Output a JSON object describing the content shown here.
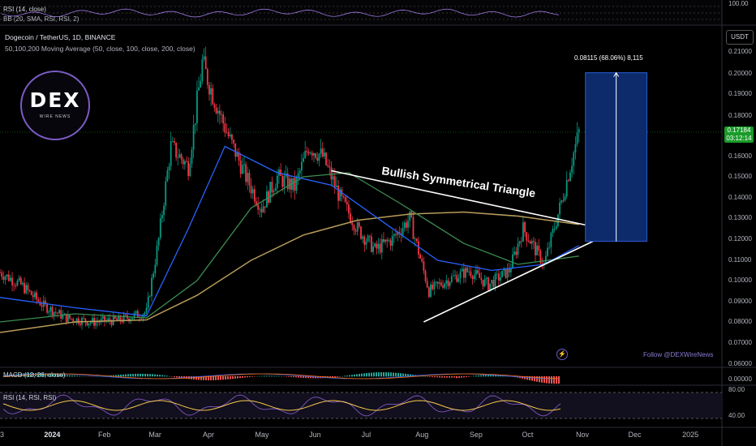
{
  "header": {
    "pair": "Dogecoin / TetherUS, 1D, BINANCE",
    "ma_label": "50,100,200 Moving Average (50, close, 100, close, 200, close)",
    "rsi_top_label": "RSI (14, close)",
    "bb_label": "BB (20, SMA, RSI, RSI, 2)",
    "top_value": "100.00"
  },
  "currency_button": "USDT",
  "logo": {
    "text": "DEX",
    "subtext": "WIRE NEWS"
  },
  "annotation": {
    "pattern_label": "Bullish Symmetrical Triangle",
    "measure_label": "0.08115 (68.06%) 8,115",
    "follow_text": "Follow @DEXWireNews"
  },
  "price_badge": {
    "price": "0.17184",
    "timer": "03:12:14"
  },
  "macd_label": "MACD (12, 26, close)",
  "macd_value": "0.00000",
  "rsi_label": "RSI (14, RSI, RSI)",
  "rsi_ticks": [
    "80.00",
    "40.00"
  ],
  "colors": {
    "up": "#089981",
    "down": "#f23645",
    "ma50": "#2962ff",
    "ma100": "#3c8c50",
    "ma200": "#b89c5a",
    "target_box": "#0d2a6b",
    "rsi_line": "#7e57c2",
    "rsi_ma": "#f5c84b"
  },
  "chart_data": {
    "type": "candlestick",
    "title": "Dogecoin / TetherUS, 1D, BINANCE",
    "y_ticks": [
      "0.21000",
      "0.20000",
      "0.19000",
      "0.18000",
      "0.16000",
      "0.15000",
      "0.14000",
      "0.13000",
      "0.12000",
      "0.11000",
      "0.10000",
      "0.09000",
      "0.08000",
      "0.07000",
      "0.06000"
    ],
    "x_ticks": [
      "3",
      "2024",
      "Feb",
      "Mar",
      "Apr",
      "May",
      "Jun",
      "Jul",
      "Aug",
      "Sep",
      "Oct",
      "Nov",
      "Dec",
      "2025"
    ],
    "ylim": [
      0.06,
      0.215
    ],
    "x_range": [
      "2023-12-03",
      "2025-01-20"
    ],
    "close_series": [
      {
        "x": "2023-12-03",
        "y": 0.104
      },
      {
        "x": "2023-12-15",
        "y": 0.098
      },
      {
        "x": "2023-12-28",
        "y": 0.088
      },
      {
        "x": "2024-01-10",
        "y": 0.082
      },
      {
        "x": "2024-01-25",
        "y": 0.08
      },
      {
        "x": "2024-02-10",
        "y": 0.081
      },
      {
        "x": "2024-02-25",
        "y": 0.085
      },
      {
        "x": "2024-03-03",
        "y": 0.12
      },
      {
        "x": "2024-03-10",
        "y": 0.165
      },
      {
        "x": "2024-03-20",
        "y": 0.155
      },
      {
        "x": "2024-03-28",
        "y": 0.205
      },
      {
        "x": "2024-04-03",
        "y": 0.19
      },
      {
        "x": "2024-04-12",
        "y": 0.17
      },
      {
        "x": "2024-04-22",
        "y": 0.15
      },
      {
        "x": "2024-05-01",
        "y": 0.135
      },
      {
        "x": "2024-05-10",
        "y": 0.15
      },
      {
        "x": "2024-05-20",
        "y": 0.145
      },
      {
        "x": "2024-05-28",
        "y": 0.165
      },
      {
        "x": "2024-06-05",
        "y": 0.16
      },
      {
        "x": "2024-06-15",
        "y": 0.14
      },
      {
        "x": "2024-06-25",
        "y": 0.125
      },
      {
        "x": "2024-07-05",
        "y": 0.115
      },
      {
        "x": "2024-07-15",
        "y": 0.12
      },
      {
        "x": "2024-07-25",
        "y": 0.13
      },
      {
        "x": "2024-08-05",
        "y": 0.095
      },
      {
        "x": "2024-08-15",
        "y": 0.1
      },
      {
        "x": "2024-08-28",
        "y": 0.105
      },
      {
        "x": "2024-09-08",
        "y": 0.098
      },
      {
        "x": "2024-09-20",
        "y": 0.105
      },
      {
        "x": "2024-09-28",
        "y": 0.125
      },
      {
        "x": "2024-10-10",
        "y": 0.108
      },
      {
        "x": "2024-10-20",
        "y": 0.138
      },
      {
        "x": "2024-10-30",
        "y": 0.172
      }
    ],
    "ma50": [
      {
        "x": "2023-12-03",
        "y": 0.092
      },
      {
        "x": "2024-01-15",
        "y": 0.087
      },
      {
        "x": "2024-02-25",
        "y": 0.083
      },
      {
        "x": "2024-03-20",
        "y": 0.125
      },
      {
        "x": "2024-04-10",
        "y": 0.165
      },
      {
        "x": "2024-05-10",
        "y": 0.152
      },
      {
        "x": "2024-06-10",
        "y": 0.146
      },
      {
        "x": "2024-07-10",
        "y": 0.128
      },
      {
        "x": "2024-08-10",
        "y": 0.11
      },
      {
        "x": "2024-09-10",
        "y": 0.105
      },
      {
        "x": "2024-10-10",
        "y": 0.108
      },
      {
        "x": "2024-10-30",
        "y": 0.117
      }
    ],
    "ma100": [
      {
        "x": "2023-12-03",
        "y": 0.08
      },
      {
        "x": "2024-01-15",
        "y": 0.084
      },
      {
        "x": "2024-02-25",
        "y": 0.082
      },
      {
        "x": "2024-03-25",
        "y": 0.1
      },
      {
        "x": "2024-04-25",
        "y": 0.135
      },
      {
        "x": "2024-05-25",
        "y": 0.15
      },
      {
        "x": "2024-06-20",
        "y": 0.152
      },
      {
        "x": "2024-07-20",
        "y": 0.137
      },
      {
        "x": "2024-08-25",
        "y": 0.118
      },
      {
        "x": "2024-09-25",
        "y": 0.108
      },
      {
        "x": "2024-10-30",
        "y": 0.112
      }
    ],
    "ma200": [
      {
        "x": "2023-12-03",
        "y": 0.075
      },
      {
        "x": "2024-01-15",
        "y": 0.08
      },
      {
        "x": "2024-02-25",
        "y": 0.081
      },
      {
        "x": "2024-03-25",
        "y": 0.093
      },
      {
        "x": "2024-04-25",
        "y": 0.11
      },
      {
        "x": "2024-05-25",
        "y": 0.122
      },
      {
        "x": "2024-06-25",
        "y": 0.129
      },
      {
        "x": "2024-07-25",
        "y": 0.132
      },
      {
        "x": "2024-08-25",
        "y": 0.133
      },
      {
        "x": "2024-09-25",
        "y": 0.131
      },
      {
        "x": "2024-10-30",
        "y": 0.127
      }
    ],
    "triangle": {
      "upper": [
        {
          "x": "2024-06-10",
          "y": 0.153
        },
        {
          "x": "2024-11-07",
          "y": 0.126
        }
      ],
      "lower": [
        {
          "x": "2024-08-02",
          "y": 0.08
        },
        {
          "x": "2024-11-07",
          "y": 0.119
        }
      ]
    },
    "target": {
      "x_start": "2024-10-30",
      "x_end": "2024-12-08",
      "y_low": 0.119,
      "y_high": 0.2005,
      "change": 0.08115,
      "percent": 68.06
    },
    "current_price": 0.17184,
    "legend": "top-left",
    "grid": true
  }
}
